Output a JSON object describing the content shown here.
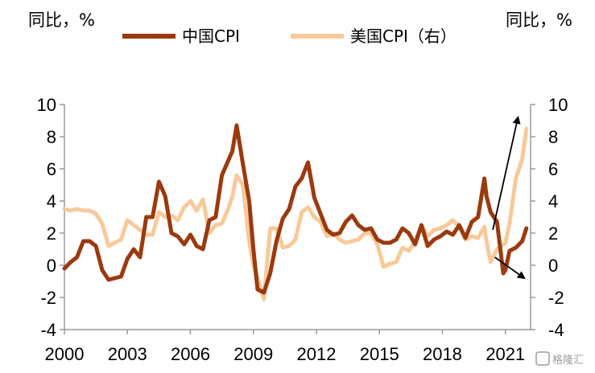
{
  "chart_data": {
    "type": "line",
    "title": "",
    "ylabel_left": "同比，%",
    "ylabel_right": "同比，%",
    "ylim_left": [
      -4,
      10
    ],
    "ylim_right": [
      -4,
      10
    ],
    "yticks": [
      -4,
      -2,
      0,
      2,
      4,
      6,
      8,
      10
    ],
    "xlim": [
      2000,
      2022.2
    ],
    "xticks": [
      2000,
      2003,
      2006,
      2009,
      2012,
      2015,
      2018,
      2021
    ],
    "legend_position": "top",
    "grid": false,
    "series": [
      {
        "name": "中国CPI",
        "axis": "left",
        "color": "#9b3a0f",
        "x": [
          2000.0,
          2000.3,
          2000.6,
          2000.9,
          2001.2,
          2001.5,
          2001.8,
          2002.1,
          2002.4,
          2002.7,
          2003.0,
          2003.3,
          2003.6,
          2003.9,
          2004.2,
          2004.5,
          2004.8,
          2005.1,
          2005.4,
          2005.7,
          2006.0,
          2006.3,
          2006.6,
          2006.9,
          2007.2,
          2007.5,
          2007.8,
          2008.0,
          2008.2,
          2008.5,
          2008.8,
          2009.0,
          2009.2,
          2009.5,
          2009.8,
          2010.1,
          2010.4,
          2010.7,
          2011.0,
          2011.3,
          2011.6,
          2011.9,
          2012.2,
          2012.5,
          2012.8,
          2013.1,
          2013.4,
          2013.7,
          2014.0,
          2014.3,
          2014.6,
          2014.9,
          2015.2,
          2015.5,
          2015.8,
          2016.1,
          2016.4,
          2016.7,
          2017.0,
          2017.3,
          2017.6,
          2017.9,
          2018.2,
          2018.5,
          2018.8,
          2019.1,
          2019.4,
          2019.7,
          2020.0,
          2020.1,
          2020.3,
          2020.6,
          2020.9,
          2021.0,
          2021.2,
          2021.5,
          2021.8,
          2022.0
        ],
        "values": [
          -0.2,
          0.2,
          0.5,
          1.5,
          1.5,
          1.2,
          -0.3,
          -0.9,
          -0.8,
          -0.7,
          0.4,
          1.0,
          0.5,
          3.0,
          3.0,
          5.2,
          4.3,
          2.0,
          1.8,
          1.3,
          1.9,
          1.2,
          1.0,
          2.8,
          3.0,
          5.6,
          6.5,
          7.1,
          8.7,
          6.3,
          4.0,
          1.0,
          -1.5,
          -1.7,
          -0.5,
          1.5,
          2.9,
          3.5,
          4.9,
          5.4,
          6.4,
          4.2,
          3.2,
          2.2,
          1.9,
          2.0,
          2.7,
          3.1,
          2.5,
          2.2,
          2.3,
          1.6,
          1.4,
          1.4,
          1.6,
          2.3,
          2.0,
          1.3,
          2.5,
          1.2,
          1.6,
          1.8,
          2.1,
          1.9,
          2.5,
          1.7,
          2.7,
          3.0,
          5.4,
          4.3,
          3.3,
          2.7,
          -0.5,
          -0.3,
          0.9,
          1.1,
          1.5,
          2.3
        ]
      },
      {
        "name": "美国CPI（右）",
        "axis": "right",
        "color": "#f8c99a",
        "x": [
          2000.0,
          2000.3,
          2000.6,
          2000.9,
          2001.2,
          2001.5,
          2001.8,
          2002.1,
          2002.4,
          2002.7,
          2003.0,
          2003.3,
          2003.6,
          2003.9,
          2004.2,
          2004.5,
          2004.8,
          2005.1,
          2005.4,
          2005.7,
          2006.0,
          2006.3,
          2006.6,
          2006.9,
          2007.2,
          2007.5,
          2007.8,
          2008.0,
          2008.2,
          2008.5,
          2008.8,
          2009.0,
          2009.2,
          2009.5,
          2009.8,
          2010.1,
          2010.4,
          2010.7,
          2011.0,
          2011.3,
          2011.6,
          2011.9,
          2012.2,
          2012.5,
          2012.8,
          2013.1,
          2013.4,
          2013.7,
          2014.0,
          2014.3,
          2014.6,
          2014.9,
          2015.2,
          2015.5,
          2015.8,
          2016.1,
          2016.4,
          2016.7,
          2017.0,
          2017.3,
          2017.6,
          2017.9,
          2018.2,
          2018.5,
          2018.8,
          2019.1,
          2019.4,
          2019.7,
          2020.0,
          2020.1,
          2020.3,
          2020.6,
          2020.9,
          2021.0,
          2021.2,
          2021.5,
          2021.8,
          2022.0
        ],
        "values": [
          3.5,
          3.4,
          3.5,
          3.4,
          3.4,
          3.2,
          2.6,
          1.2,
          1.4,
          1.6,
          2.8,
          2.5,
          2.2,
          1.9,
          1.9,
          3.3,
          3.0,
          3.1,
          2.8,
          3.6,
          4.0,
          3.4,
          4.1,
          2.0,
          2.5,
          2.6,
          3.5,
          4.3,
          5.6,
          5.0,
          1.5,
          0.0,
          -0.8,
          -2.1,
          2.3,
          2.3,
          1.1,
          1.2,
          1.6,
          3.3,
          3.6,
          3.0,
          2.7,
          1.8,
          2.0,
          1.6,
          1.4,
          1.5,
          1.6,
          2.0,
          2.0,
          1.3,
          -0.1,
          0.1,
          0.2,
          1.1,
          0.9,
          1.5,
          2.5,
          1.8,
          2.2,
          2.3,
          2.5,
          2.8,
          2.4,
          1.6,
          1.8,
          1.7,
          2.4,
          1.5,
          0.2,
          1.0,
          1.3,
          1.4,
          2.6,
          5.4,
          6.6,
          8.5
        ]
      }
    ],
    "annotations": [
      {
        "type": "arrow",
        "axis": "left",
        "from": [
          2020.4,
          2.2
        ],
        "to": [
          2021.6,
          9.2
        ]
      },
      {
        "type": "arrow",
        "axis": "left",
        "from": [
          2020.5,
          0.5
        ],
        "to": [
          2021.9,
          -0.8
        ]
      }
    ]
  },
  "watermark": {
    "text": "格隆汇"
  }
}
